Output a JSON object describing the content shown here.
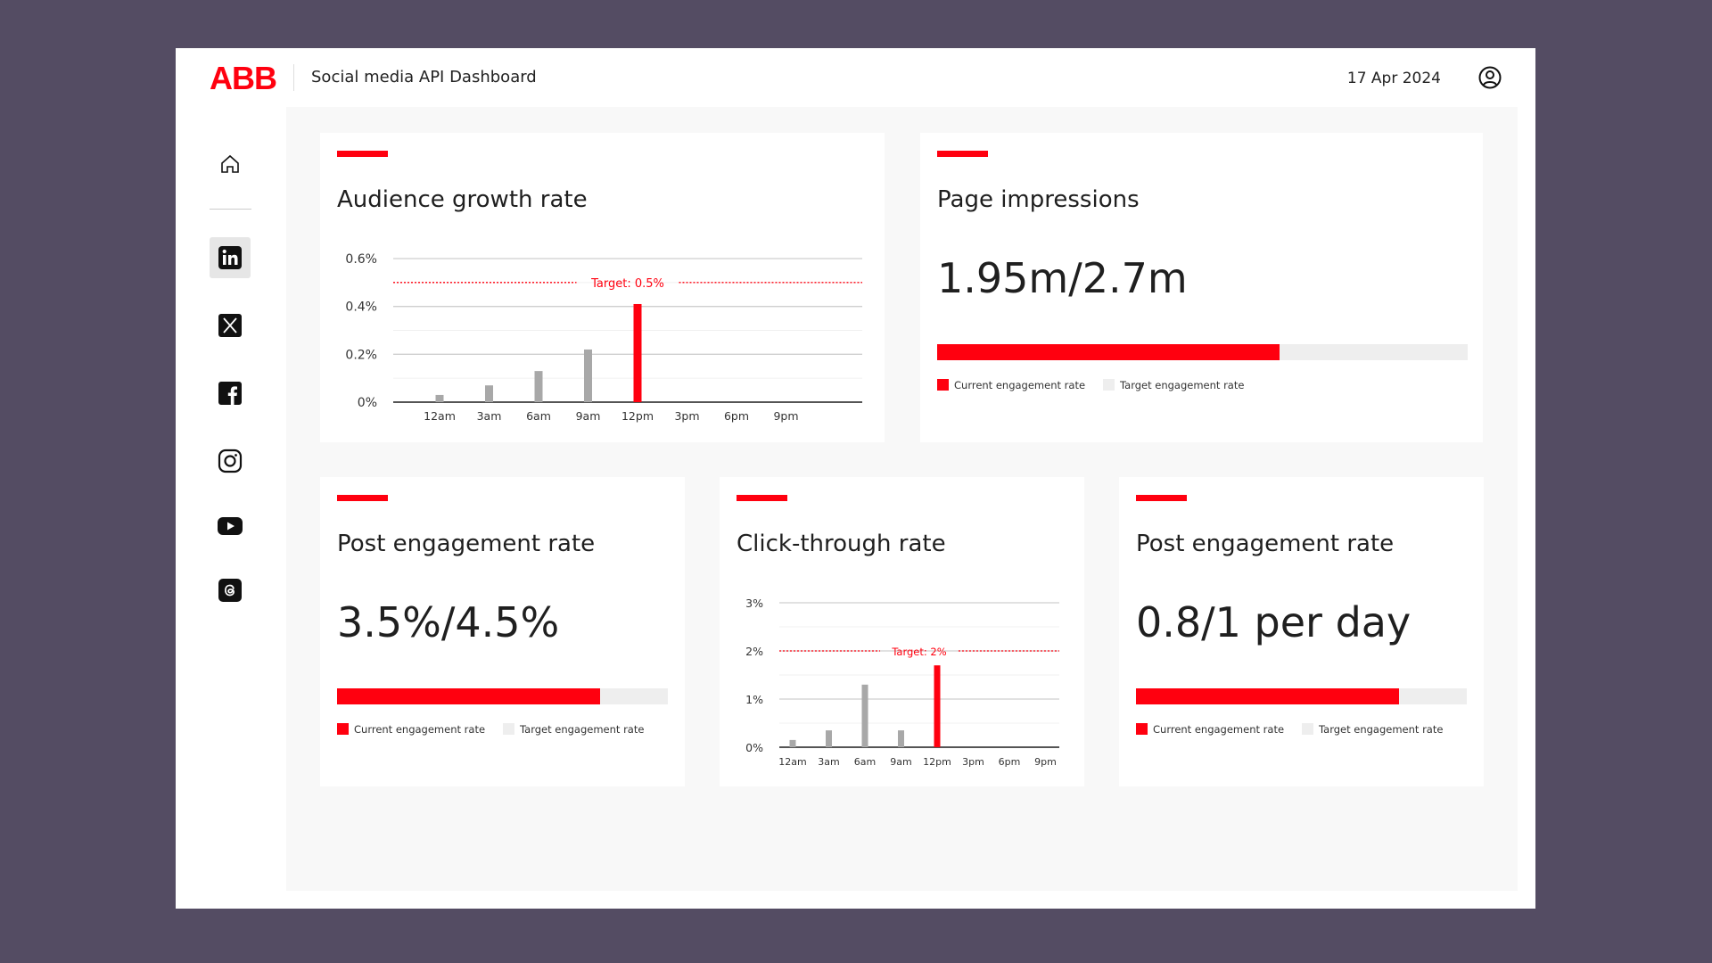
{
  "header": {
    "logo": "ABB",
    "title": "Social media API Dashboard",
    "date": "17 Apr 2024"
  },
  "sidebar": {
    "items": [
      {
        "icon": "home-icon"
      },
      {
        "icon": "linkedin-icon",
        "active": true
      },
      {
        "icon": "x-icon"
      },
      {
        "icon": "facebook-icon"
      },
      {
        "icon": "instagram-icon"
      },
      {
        "icon": "youtube-icon"
      },
      {
        "icon": "threads-icon"
      }
    ]
  },
  "colors": {
    "accent": "#ff000f",
    "bar_gray": "#a8a8a8",
    "track": "#eeeeee",
    "background": "#544c63"
  },
  "cards": {
    "audience": {
      "title": "Audience growth rate"
    },
    "impressions": {
      "title": "Page impressions",
      "value": "1.95m/2.7m",
      "progress": 0.645,
      "legend_current": "Current engagement rate",
      "legend_target": "Target engagement rate"
    },
    "engagement1": {
      "title": "Post engagement rate",
      "value": "3.5%/4.5%",
      "progress": 0.795,
      "legend_current": "Current engagement rate",
      "legend_target": "Target engagement rate"
    },
    "ctr": {
      "title": "Click-through rate"
    },
    "engagement2": {
      "title": "Post engagement rate",
      "value": "0.8/1 per day",
      "progress": 0.795,
      "legend_current": "Current engagement rate",
      "legend_target": "Target engagement rate"
    }
  },
  "chart_data": [
    {
      "type": "bar",
      "title": "Audience growth rate",
      "categories": [
        "12am",
        "3am",
        "6am",
        "9am",
        "12pm",
        "3pm",
        "6pm",
        "9pm"
      ],
      "values": [
        0.03,
        0.07,
        0.13,
        0.22,
        0.41,
        0,
        0,
        0
      ],
      "highlight_index": 4,
      "yticks": [
        "0%",
        "0.2%",
        "0.4%",
        "0.6%"
      ],
      "ytick_values": [
        0,
        0.2,
        0.4,
        0.6
      ],
      "ylim": [
        0,
        0.6
      ],
      "target": 0.5,
      "target_label": "Target: 0.5%",
      "grid": true
    },
    {
      "type": "bar",
      "title": "Click-through rate",
      "categories": [
        "12am",
        "3am",
        "6am",
        "9am",
        "12pm",
        "3pm",
        "6pm",
        "9pm"
      ],
      "values": [
        0.15,
        0.35,
        1.3,
        0.35,
        1.7,
        0,
        0,
        0
      ],
      "highlight_index": 4,
      "yticks": [
        "0%",
        "1%",
        "2%",
        "3%"
      ],
      "ytick_values": [
        0,
        1,
        2,
        3
      ],
      "ylim": [
        0,
        3
      ],
      "target": 2,
      "target_label": "Target: 2%",
      "grid": true
    }
  ]
}
